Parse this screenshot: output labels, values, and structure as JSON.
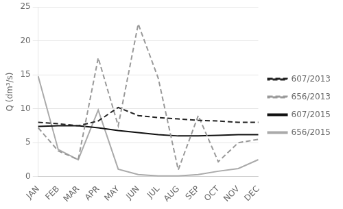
{
  "chart_data": {
    "type": "line",
    "categories": [
      "JAN",
      "FEB",
      "MAR",
      "APR",
      "MAY",
      "JUN",
      "JUL",
      "AUG",
      "SEP",
      "OCT",
      "NOV",
      "DEC"
    ],
    "series": [
      {
        "name": "607/2013",
        "color": "#222222",
        "line_style": "dashed",
        "values": [
          8.0,
          7.8,
          7.5,
          8.2,
          10.2,
          9.0,
          8.7,
          8.5,
          8.3,
          8.2,
          8.0,
          8.0
        ]
      },
      {
        "name": "656/2013",
        "color": "#999999",
        "line_style": "dashed",
        "values": [
          7.2,
          3.8,
          2.5,
          17.5,
          7.5,
          22.5,
          14.5,
          1.0,
          9.0,
          2.2,
          5.0,
          5.5
        ]
      },
      {
        "name": "607/2015",
        "color": "#111111",
        "line_style": "solid",
        "values": [
          7.4,
          7.5,
          7.5,
          7.2,
          6.8,
          6.5,
          6.2,
          6.0,
          6.0,
          6.1,
          6.2,
          6.2
        ]
      },
      {
        "name": "656/2015",
        "color": "#aaaaaa",
        "line_style": "solid",
        "values": [
          14.8,
          4.0,
          2.5,
          9.8,
          1.1,
          0.3,
          0.1,
          0.1,
          0.3,
          0.8,
          1.2,
          2.5
        ]
      }
    ],
    "ylabel": "Q (dm³/s)",
    "ylim": [
      0,
      25
    ],
    "yticks": [
      0,
      5,
      10,
      15,
      20,
      25
    ],
    "grid": true,
    "legend": "right"
  }
}
